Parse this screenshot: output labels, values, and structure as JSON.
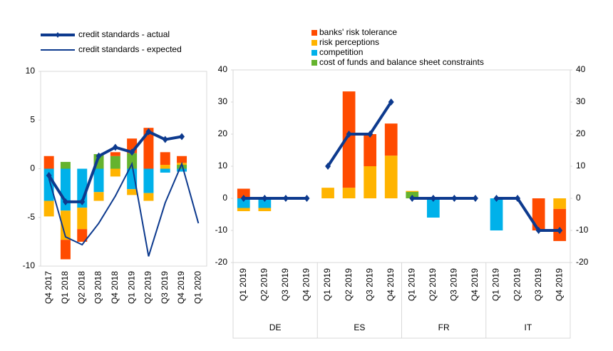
{
  "chart_data": [
    {
      "type": "bar",
      "categories": [
        "Q4 2017",
        "Q1 2018",
        "Q2 2018",
        "Q3 2018",
        "Q4 2018",
        "Q1 2019",
        "Q2 2019",
        "Q3 2019",
        "Q4 2019",
        "Q1 2020"
      ],
      "series": [
        {
          "color": "#ff4b00",
          "values": [
            1.3,
            -2.0,
            -1.3,
            0,
            0.4,
            1.5,
            4.2,
            1.3,
            0.7,
            0
          ]
        },
        {
          "color": "#ffb400",
          "values": [
            -1.6,
            -3.0,
            -2.2,
            -0.9,
            -0.8,
            -0.6,
            -0.8,
            0.4,
            0.2,
            0
          ]
        },
        {
          "color": "#00b1ea",
          "values": [
            -3.3,
            -4.3,
            -4.0,
            -2.4,
            0,
            -2.1,
            -2.5,
            -0.4,
            -0.3,
            0
          ]
        },
        {
          "color": "#65b32e",
          "values": [
            0,
            0.7,
            0,
            1.5,
            1.3,
            1.6,
            0,
            0,
            0.4,
            0
          ]
        },
        {
          "name": "credit standards - actual",
          "type": "line",
          "markers": true,
          "color": "#0d3a8e",
          "values": [
            -0.7,
            -3.4,
            -3.4,
            1.3,
            2.2,
            1.7,
            3.8,
            3.0,
            3.3,
            null
          ]
        },
        {
          "name": "credit standards - expected",
          "type": "line",
          "markers": false,
          "color": "#0d3a8e",
          "values": [
            -1.0,
            -7.0,
            -7.8,
            -5.6,
            -2.8,
            0.5,
            -9.0,
            -3.5,
            0.5,
            -5.6
          ]
        }
      ],
      "ylim": [
        -10,
        10
      ],
      "yticks": [
        -10,
        -5,
        0,
        5,
        10
      ]
    },
    {
      "type": "bar",
      "categories": [
        "Q1 2019",
        "Q2 2019",
        "Q3 2019",
        "Q4 2019",
        "Q1 2019",
        "Q2 2019",
        "Q3 2019",
        "Q4 2019",
        "Q1 2019",
        "Q2 2019",
        "Q3 2019",
        "Q4 2019",
        "Q1 2019",
        "Q2 2019",
        "Q3 2019",
        "Q4 2019"
      ],
      "groups": [
        "DE",
        "ES",
        "FR",
        "IT"
      ],
      "series": [
        {
          "name": "banks' risk tolerance",
          "color": "#ff4b00",
          "values": [
            3,
            0,
            0,
            0,
            0,
            30,
            10,
            10,
            0,
            0,
            0,
            0,
            0,
            0,
            -10,
            -10
          ]
        },
        {
          "name": "risk perceptions",
          "color": "#ffb400",
          "values": [
            -1,
            -1,
            0,
            0,
            3.3,
            3.3,
            10,
            13.3,
            0.3,
            0,
            0,
            0,
            0,
            0,
            0,
            -3.3
          ]
        },
        {
          "name": "competition",
          "color": "#00b1ea",
          "values": [
            -3,
            -3,
            0,
            0,
            0,
            0,
            0,
            0,
            0,
            -6,
            0,
            0,
            -10,
            0,
            0,
            0
          ]
        },
        {
          "name": "cost of funds and balance sheet constraints",
          "color": "#65b32e",
          "values": [
            0,
            0,
            0,
            0,
            0,
            0,
            0,
            0,
            2,
            0,
            0,
            0,
            0,
            0,
            0,
            0
          ]
        },
        {
          "type": "line",
          "markers": true,
          "color": "#0d3a8e",
          "values": [
            0,
            0,
            0,
            0,
            10,
            20,
            20,
            30,
            0,
            0,
            0,
            0,
            0,
            0,
            -10,
            -10
          ]
        }
      ],
      "ylim": [
        -20,
        40
      ],
      "yticks": [
        -20,
        -10,
        0,
        10,
        20,
        30,
        40
      ],
      "y2lim": [
        -20,
        40
      ],
      "y2ticks": [
        -20,
        -10,
        0,
        10,
        20,
        30,
        40
      ]
    }
  ]
}
